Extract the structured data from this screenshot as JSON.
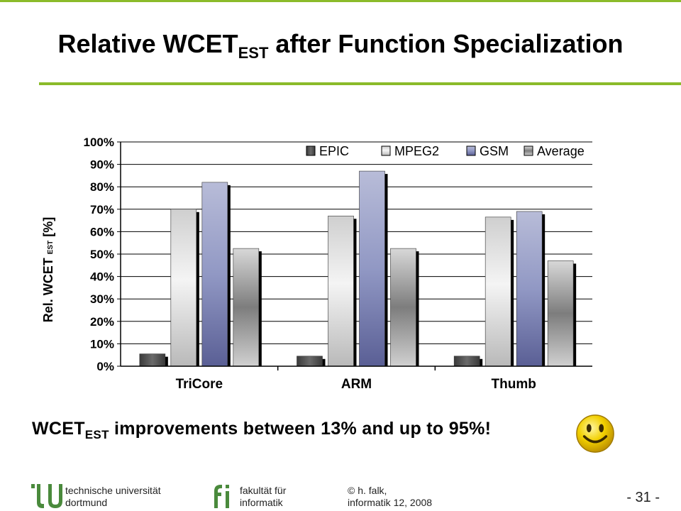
{
  "slide": {
    "title_main": "Relative WCET",
    "title_sub": "EST",
    "title_rest": " after Function Specialization",
    "statement_main": "WCET",
    "statement_sub": "EST",
    "statement_rest": " improvements between 13% and up to 95%!",
    "smiley_icon": "smiley-face-icon"
  },
  "footer": {
    "university_line1": "technische universität",
    "university_line2": "dortmund",
    "faculty_line1": "fakultät für",
    "faculty_line2": "informatik",
    "author_line1": "© h. falk,",
    "author_line2": "informatik 12,  2008",
    "page_number": "- 31 -",
    "brand_color": "#8bbb2a",
    "logo_color": "#4a8a3c"
  },
  "chart_data": {
    "type": "bar",
    "categories": [
      "TriCore",
      "ARM",
      "Thumb"
    ],
    "series": [
      {
        "name": "EPIC",
        "values": [
          5.5,
          4.5,
          4.5
        ],
        "color": "#555555"
      },
      {
        "name": "MPEG2",
        "values": [
          70,
          67,
          66.5
        ],
        "color": "#d8d8d8"
      },
      {
        "name": "GSM",
        "values": [
          82,
          87,
          69
        ],
        "color": "#8088b8"
      },
      {
        "name": "Average",
        "values": [
          52.5,
          52.5,
          47
        ],
        "color": "#9a9a9a"
      }
    ],
    "ylim": [
      0,
      100
    ],
    "yticks": [
      "0%",
      "10%",
      "20%",
      "30%",
      "40%",
      "50%",
      "60%",
      "70%",
      "80%",
      "90%",
      "100%"
    ],
    "ylabel_main": "Rel. WCET",
    "ylabel_sub": "EST",
    "ylabel_unit": "[%]",
    "legend_position": "top-right",
    "grid": true
  }
}
